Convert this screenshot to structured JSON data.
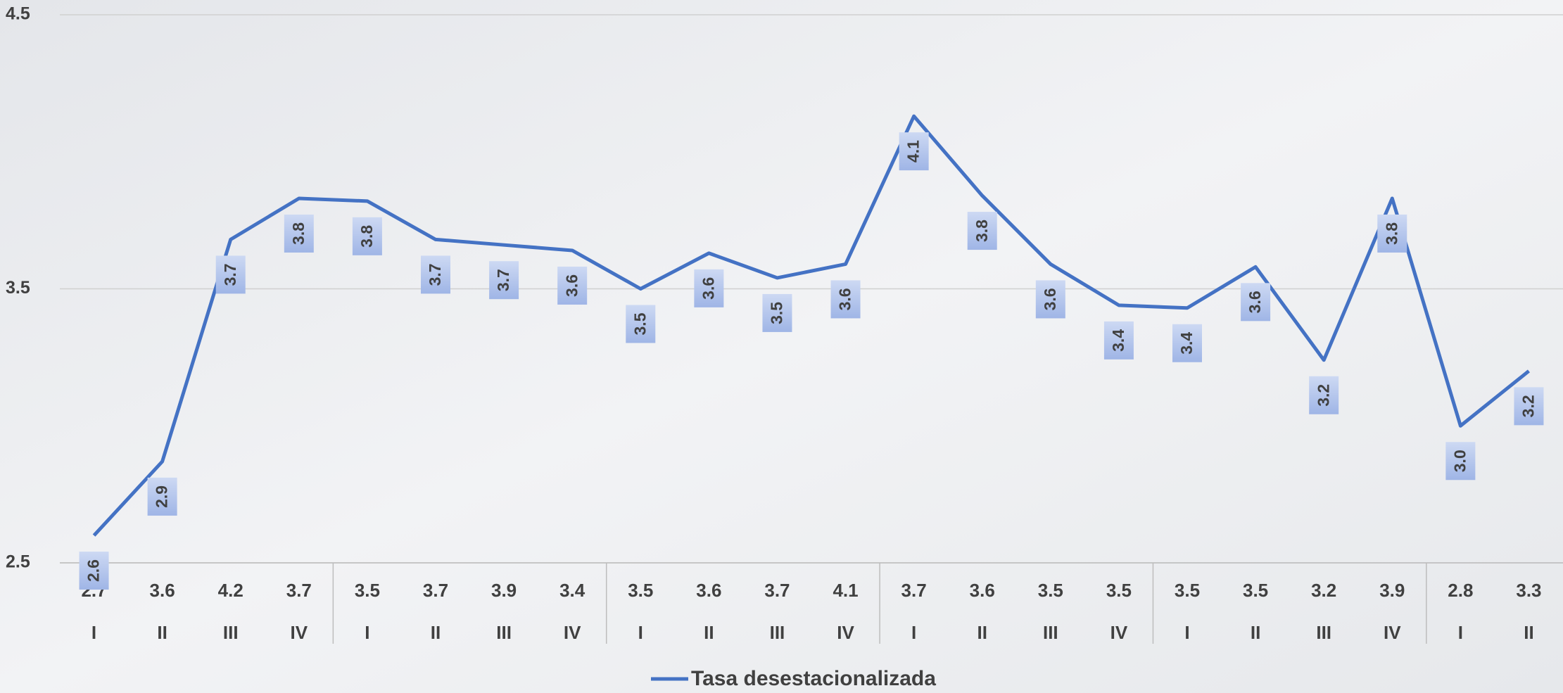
{
  "chart_data": {
    "type": "line",
    "categories": [
      "I",
      "II",
      "III",
      "IV",
      "I",
      "II",
      "III",
      "IV",
      "I",
      "II",
      "III",
      "IV",
      "I",
      "II",
      "III",
      "IV",
      "I",
      "II",
      "III",
      "IV",
      "I",
      "II"
    ],
    "row_labels": [
      "2.7",
      "3.6",
      "4.2",
      "3.7",
      "3.5",
      "3.7",
      "3.9",
      "3.4",
      "3.5",
      "3.6",
      "3.7",
      "4.1",
      "3.7",
      "3.6",
      "3.5",
      "3.5",
      "3.5",
      "3.5",
      "3.2",
      "3.9",
      "2.8",
      "3.3"
    ],
    "series": [
      {
        "name": "Tasa desestacionalizada",
        "color": "#4472c4",
        "values": [
          2.6,
          2.87,
          3.68,
          3.83,
          3.82,
          3.68,
          3.66,
          3.64,
          3.5,
          3.63,
          3.54,
          3.59,
          4.13,
          3.84,
          3.59,
          3.44,
          3.43,
          3.58,
          3.24,
          3.83,
          3.0,
          3.2
        ],
        "value_labels": [
          "2.6",
          "2.9",
          "3.7",
          "3.8",
          "3.8",
          "3.7",
          "3.7",
          "3.6",
          "3.5",
          "3.6",
          "3.5",
          "3.6",
          "4.1",
          "3.8",
          "3.6",
          "3.4",
          "3.4",
          "3.6",
          "3.2",
          "3.8",
          "3.0",
          "3.2"
        ]
      }
    ],
    "ylim": [
      2.5,
      4.5
    ],
    "yticks": [
      2.5,
      3.5,
      4.5
    ],
    "grid": true,
    "legend": "bottom"
  }
}
